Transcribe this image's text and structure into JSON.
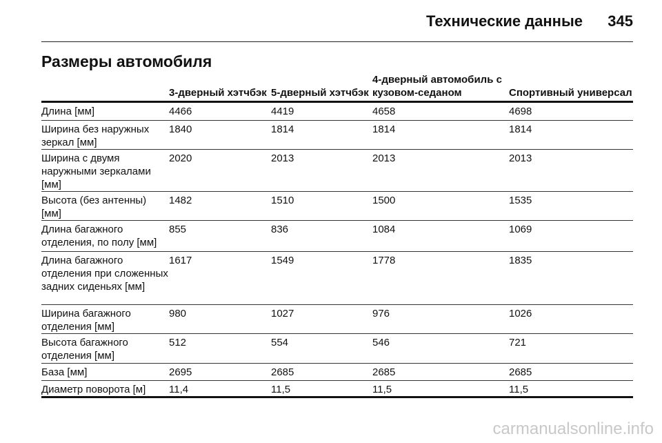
{
  "header": {
    "title": "Технические данные",
    "page_number": "345"
  },
  "section_title": "Размеры автомобиля",
  "table": {
    "columns": [
      "3-дверный хэтчбэк",
      "5-дверный хэтчбэк",
      "4-дверный автомобиль с кузовом-седаном",
      "Спортивный универсал"
    ],
    "rows": [
      [
        "Длина [мм]",
        "4466",
        "4419",
        "4658",
        "4698"
      ],
      [
        "Ширина без наружных зеркал [мм]",
        "1840",
        "1814",
        "1814",
        "1814"
      ],
      [
        "Ширина с двумя наружными зеркалами [мм]",
        "2020",
        "2013",
        "2013",
        "2013"
      ],
      [
        "Высота (без антенны) [мм]",
        "1482",
        "1510",
        "1500",
        "1535"
      ],
      [
        "Длина багажного отделения, по полу [мм]",
        "855",
        "836",
        "1084",
        "1069"
      ],
      [
        "Длина багажного отделения при сложенных задних сиденьях [мм]",
        "1617",
        "1549",
        "1778",
        "1835"
      ],
      [
        "Ширина багажного отделения [мм]",
        "980",
        "1027",
        "976",
        "1026"
      ],
      [
        "Высота багажного отделения [мм]",
        "512",
        "554",
        "546",
        "721"
      ],
      [
        "База [мм]",
        "2695",
        "2685",
        "2685",
        "2685"
      ],
      [
        "Диаметр поворота [м]",
        "11,4",
        "11,5",
        "11,5",
        "11,5"
      ]
    ]
  },
  "watermark": "carmanualsonline.info"
}
